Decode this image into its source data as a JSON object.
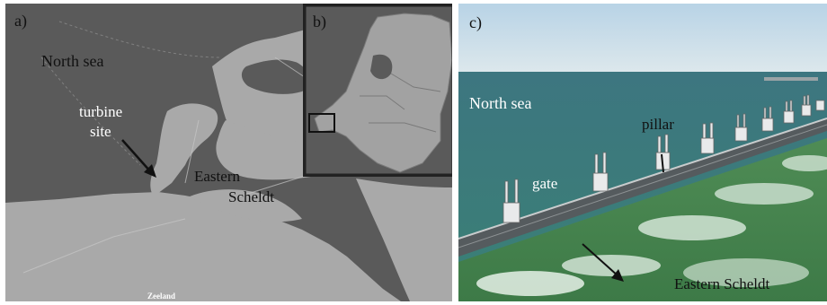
{
  "panel_a": {
    "letter": "a)",
    "labels": {
      "north_sea": "North sea",
      "turbine_line1": "turbine",
      "turbine_line2": "site",
      "eastern": "Eastern",
      "scheldt": "Scheldt",
      "province": "Zeeland"
    },
    "colors": {
      "water": "#5a5a5a",
      "land": "#a9a9a9",
      "road": "#c8c8c8",
      "border": "#8a8a8a"
    }
  },
  "panel_b": {
    "letter": "b)",
    "colors": {
      "water": "#5a5a5a",
      "land": "#a2a2a2",
      "frame": "#222222",
      "marker": "#111111"
    }
  },
  "panel_c": {
    "letter": "c)",
    "labels": {
      "north_sea": "North sea",
      "pillar": "pillar",
      "gate": "gate",
      "eastern_scheldt": "Eastern Scheldt"
    },
    "colors": {
      "sky": "#c7dce8",
      "sea": "#3f7e7a",
      "scheldt": "#4d8a52",
      "foam": "#e8f3ea",
      "dam": "#555b5e"
    }
  }
}
